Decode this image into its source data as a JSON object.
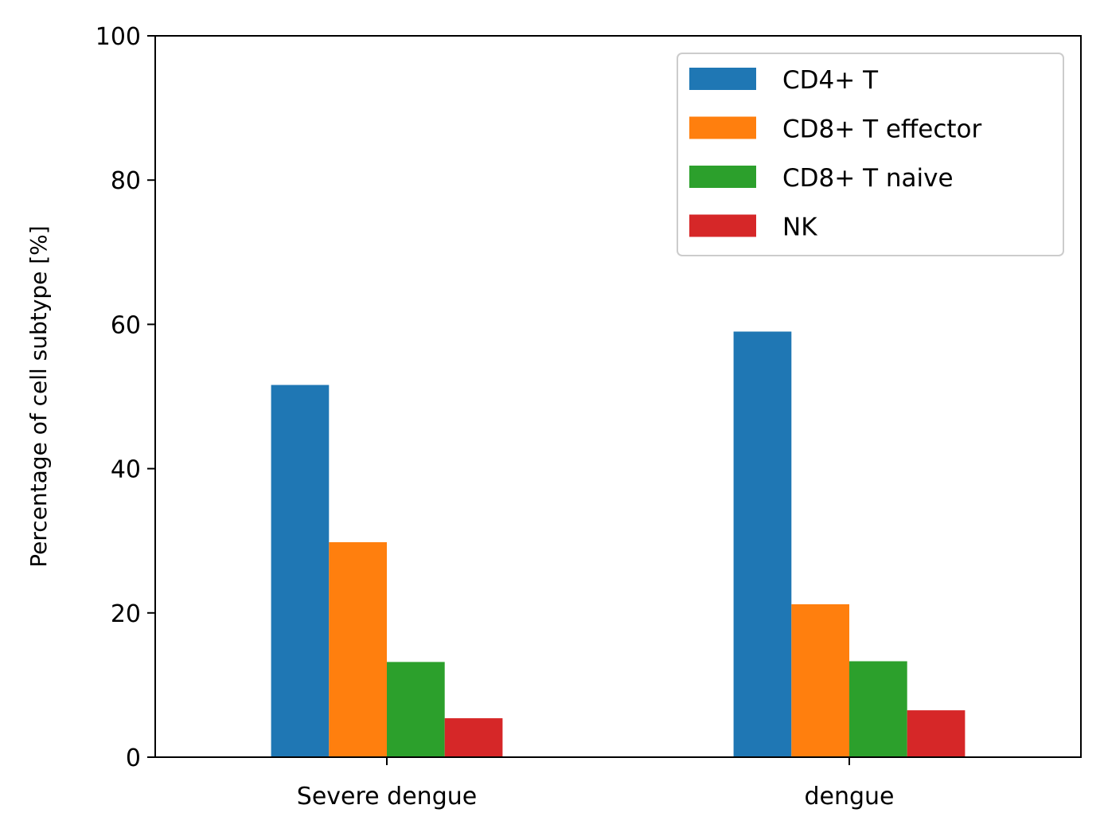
{
  "chart_data": {
    "type": "bar",
    "title": "",
    "xlabel": "",
    "ylabel": "Percentage of cell subtype [%]",
    "ylim": [
      0,
      100
    ],
    "yticks": [
      0,
      20,
      40,
      60,
      80,
      100
    ],
    "categories": [
      "Severe dengue",
      "dengue"
    ],
    "series": [
      {
        "name": "CD4+ T",
        "color": "#1f77b4",
        "values": [
          51.6,
          59.0
        ]
      },
      {
        "name": "CD8+ T effector",
        "color": "#ff7f0e",
        "values": [
          29.8,
          21.2
        ]
      },
      {
        "name": "CD8+ T naive",
        "color": "#2ca02c",
        "values": [
          13.2,
          13.3
        ]
      },
      {
        "name": "NK",
        "color": "#d62728",
        "values": [
          5.4,
          6.5
        ]
      }
    ],
    "grid": false,
    "legend_position": "top-right"
  }
}
